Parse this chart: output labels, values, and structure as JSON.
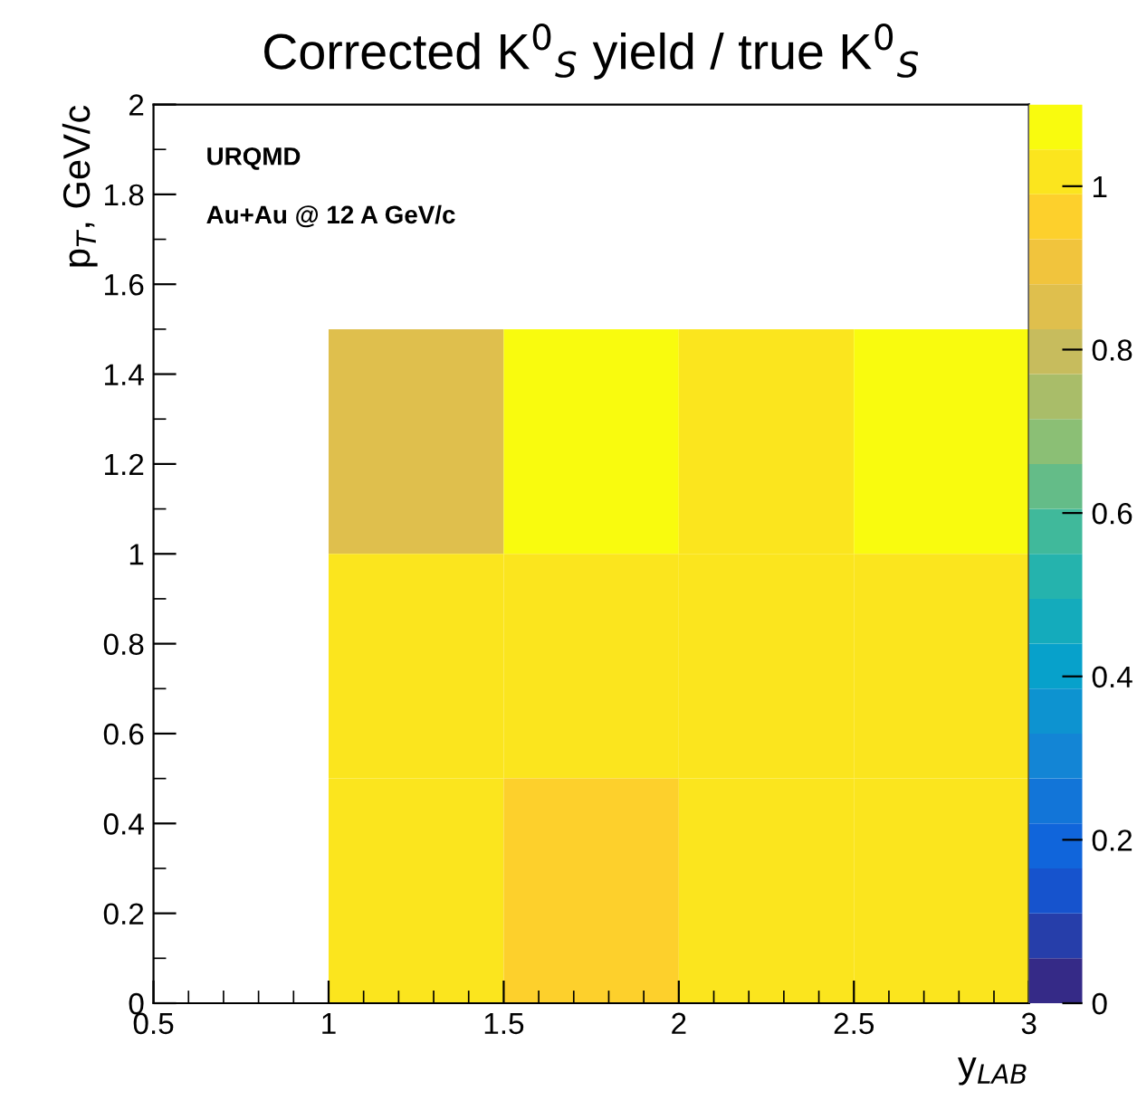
{
  "chart_data": {
    "type": "heatmap",
    "title": "Corrected K$^{0}$$_{S}$ yield / true K$^{0}$$_{S}$",
    "xlabel": "y$_{LAB}$",
    "ylabel": "p$_{T}$, GeV/c",
    "annotations": [
      "URQMD",
      "Au+Au @ 12 A GeV/c"
    ],
    "x": [
      1.25,
      1.75,
      2.25,
      2.75
    ],
    "y": [
      1.25,
      0.75,
      0.25
    ],
    "cells": [
      [
        0.85,
        1.07,
        1.02,
        1.07
      ],
      [
        1.02,
        1.02,
        1.02,
        1.02
      ],
      [
        1.02,
        0.96,
        1.02,
        1.02
      ]
    ],
    "xlim": [
      0.5,
      3
    ],
    "xticks": [
      0.5,
      1,
      1.5,
      2,
      2.5,
      3
    ],
    "ylim": [
      0,
      2
    ],
    "yticks": [
      0,
      0.2,
      0.4,
      0.6,
      0.8,
      1,
      1.2,
      1.4,
      1.6,
      1.8,
      2
    ],
    "clim": [
      0,
      1.1
    ],
    "cticks": [
      0,
      0.2,
      0.4,
      0.6,
      0.8,
      1
    ]
  }
}
